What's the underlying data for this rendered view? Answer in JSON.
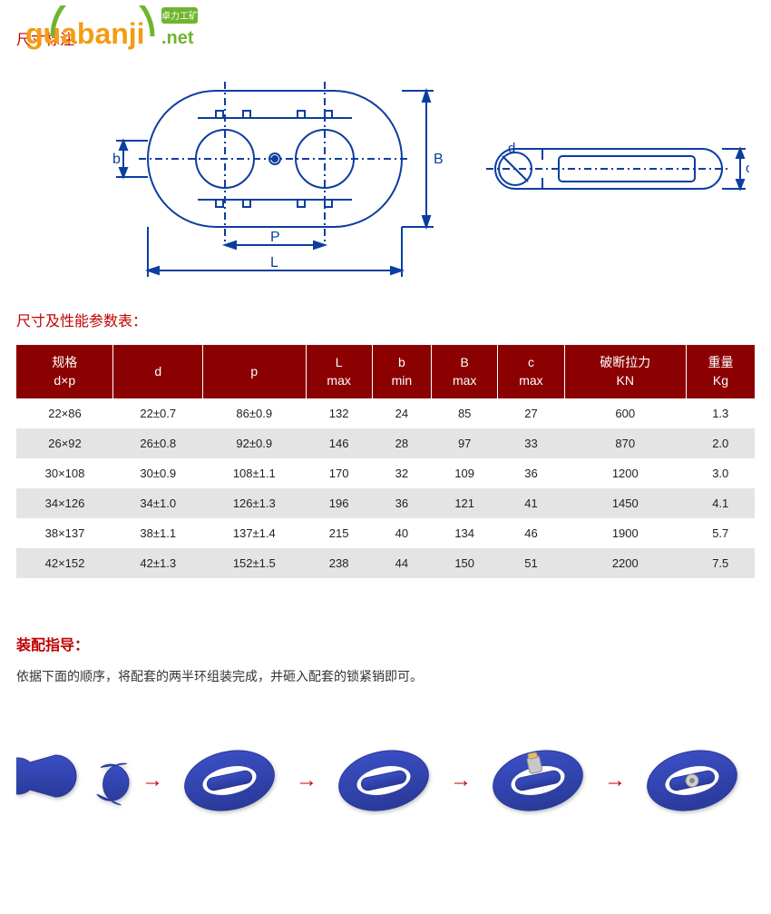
{
  "logo": {
    "text_main": "guabanji",
    "text_suffix": ".net",
    "badge": "卓力工矿"
  },
  "section1_title": "尺寸标注",
  "diagram": {
    "labels": {
      "b_small": "b",
      "P": "P",
      "L": "L",
      "B": "B",
      "d_small": "d",
      "c_small": "c"
    },
    "colors": {
      "stroke": "#0b3ea0",
      "bg": "#ffffff"
    }
  },
  "section2_title": "尺寸及性能参数表：",
  "table": {
    "header_bg": "#8b0000",
    "header_color": "#ffffff",
    "columns": [
      {
        "l1": "规格",
        "l2": "d×p"
      },
      {
        "l1": "d",
        "l2": ""
      },
      {
        "l1": "p",
        "l2": ""
      },
      {
        "l1": "L",
        "l2": "max"
      },
      {
        "l1": "b",
        "l2": "min"
      },
      {
        "l1": "B",
        "l2": "max"
      },
      {
        "l1": "c",
        "l2": "max"
      },
      {
        "l1": "破断拉力",
        "l2": "KN"
      },
      {
        "l1": "重量",
        "l2": "Kg"
      }
    ],
    "rows": [
      [
        "22×86",
        "22±0.7",
        "86±0.9",
        "132",
        "24",
        "85",
        "27",
        "600",
        "1.3"
      ],
      [
        "26×92",
        "26±0.8",
        "92±0.9",
        "146",
        "28",
        "97",
        "33",
        "870",
        "2.0"
      ],
      [
        "30×108",
        "30±0.9",
        "108±1.1",
        "170",
        "32",
        "109",
        "36",
        "1200",
        "3.0"
      ],
      [
        "34×126",
        "34±1.0",
        "126±1.3",
        "196",
        "36",
        "121",
        "41",
        "1450",
        "4.1"
      ],
      [
        "38×137",
        "38±1.1",
        "137±1.4",
        "215",
        "40",
        "134",
        "46",
        "1900",
        "5.7"
      ],
      [
        "42×152",
        "42±1.3",
        "152±1.5",
        "238",
        "44",
        "150",
        "51",
        "2200",
        "7.5"
      ]
    ]
  },
  "assembly": {
    "title": "装配指导：",
    "text": "依据下面的顺序，将配套的两半环组装完成，并砸入配套的锁紧销即可。",
    "step_count": 5,
    "arrow_glyph": "→",
    "link_color": "#3a4ec2",
    "link_dark": "#2a3a9a"
  }
}
